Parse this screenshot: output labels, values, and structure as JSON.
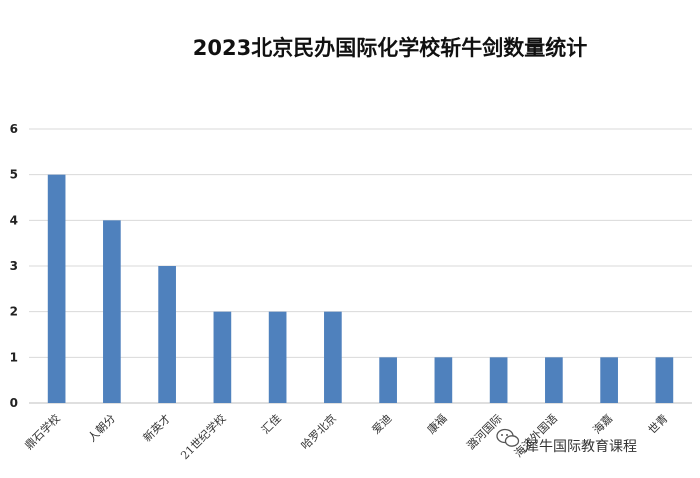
{
  "chart_data": {
    "type": "bar",
    "title": "2023北京民办国际化学校斩牛剑数量统计",
    "categories": [
      "鼎石学校",
      "人朝分",
      "新英才",
      "21世纪学校",
      "汇佳",
      "哈罗北京",
      "爱迪",
      "康福",
      "潞河国际",
      "海淀外国语",
      "海嘉",
      "世青"
    ],
    "values": [
      5,
      4,
      3,
      2,
      2,
      2,
      1,
      1,
      1,
      1,
      1,
      1
    ],
    "ylim": [
      0,
      6
    ],
    "yticks": [
      0,
      1,
      2,
      3,
      4,
      5,
      6
    ],
    "grid": true,
    "legend": "none",
    "bar_color": "#4f81bd"
  },
  "watermark": {
    "text": "犀牛国际教育课程",
    "icon": "wechat-icon"
  }
}
